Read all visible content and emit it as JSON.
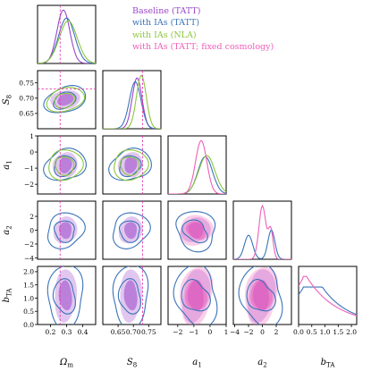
{
  "chart_data": {
    "type": "scatter",
    "legend_position": "top-right",
    "grid": false,
    "params": [
      {
        "key": "omega_m",
        "axis_label": "Ω",
        "axis_sub": "m",
        "range": [
          0.12,
          0.48
        ],
        "ticks": [
          0.2,
          0.3,
          0.4
        ],
        "tick_labels": [
          "0.2",
          "0.3",
          "0.4"
        ]
      },
      {
        "key": "s8",
        "axis_label": "S",
        "axis_sub": "8",
        "range": [
          0.6,
          0.79
        ],
        "ticks": [
          0.65,
          0.7,
          0.75
        ],
        "tick_labels": [
          "0.65",
          "0.70",
          "0.75"
        ]
      },
      {
        "key": "a1",
        "axis_label": "a",
        "axis_sub": "1",
        "range": [
          -2.6,
          1.0
        ],
        "ticks": [
          -2,
          -1,
          0,
          1
        ],
        "tick_labels": [
          "−2",
          "−1",
          "0",
          "1"
        ],
        "x_tick_labels": [
          "−2",
          "−1",
          "0",
          "1"
        ]
      },
      {
        "key": "a2",
        "axis_label": "a",
        "axis_sub": "2",
        "range": [
          -4.2,
          4.2
        ],
        "ticks": [
          -4,
          -2,
          0,
          2
        ],
        "tick_labels": [
          "−4",
          "−2",
          "0",
          "2"
        ],
        "x_tick_labels": [
          "−4",
          "−2",
          "0",
          "2"
        ]
      },
      {
        "key": "bta",
        "axis_label": "b",
        "axis_sub": "TA",
        "range": [
          0.0,
          2.2
        ],
        "ticks": [
          0.0,
          0.5,
          1.0,
          1.5,
          2.0
        ],
        "tick_labels": [
          "0.0",
          "0.5",
          "1.0",
          "1.5",
          "2.0"
        ]
      }
    ],
    "series": [
      {
        "name": "Baseline (TATT)",
        "color": "#9b45c9",
        "style": "filled",
        "center": {
          "omega_m": 0.28,
          "s8": 0.715
        },
        "sigma": {
          "omega_m": 0.035,
          "s8": 0.017
        }
      },
      {
        "name": "with IAs (TATT)",
        "color": "#3b73b9",
        "style": "line",
        "center": {
          "omega_m": 0.3,
          "s8": 0.705,
          "a1": -0.25,
          "a2": 0.0,
          "bta": 0.9
        },
        "sigma": {
          "omega_m": 0.05,
          "s8": 0.022,
          "a1": 0.6,
          "a2": 1.6,
          "bta": 0.6
        }
      },
      {
        "name": "with IAs (NLA)",
        "color": "#8cc63f",
        "style": "line",
        "center": {
          "omega_m": 0.31,
          "s8": 0.725,
          "a1": -0.2
        },
        "sigma": {
          "omega_m": 0.055,
          "s8": 0.017,
          "a1": 0.5
        }
      },
      {
        "name": "with IAs (TATT; fixed cosmology)",
        "color": "#ee5fb9",
        "style": "filled",
        "center": {
          "a1": -0.55,
          "a2": 0.3,
          "bta": 0.9
        },
        "sigma": {
          "a1": 0.5,
          "a2": 1.3,
          "bta": 0.6
        }
      }
    ],
    "reference_lines": {
      "omega_m": 0.26,
      "s8": 0.73,
      "color": "#e040b0",
      "style": "dashed"
    }
  }
}
